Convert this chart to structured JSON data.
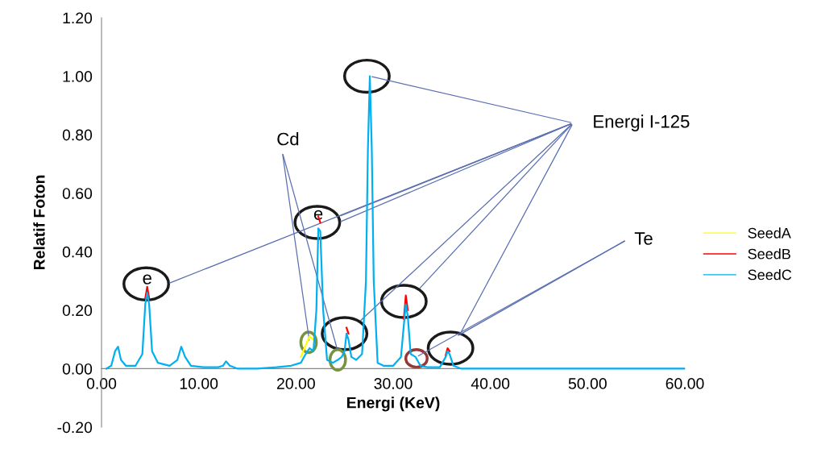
{
  "chart_data": {
    "type": "line",
    "xlabel": "Energi (KeV)",
    "ylabel": "Relatif Foton",
    "xlim": [
      0,
      60
    ],
    "xticks": [
      {
        "value": 0,
        "label": "0.00"
      },
      {
        "value": 10,
        "label": "10.00"
      },
      {
        "value": 20,
        "label": "20.00"
      },
      {
        "value": 30,
        "label": "30.00"
      },
      {
        "value": 40,
        "label": "40.00"
      },
      {
        "value": 50,
        "label": "50.00"
      },
      {
        "value": 60,
        "label": "60.00"
      }
    ],
    "ylim": [
      -0.2,
      1.2
    ],
    "yticks": [
      {
        "value": -0.2,
        "label": "-0.20"
      },
      {
        "value": 0,
        "label": "0.00"
      },
      {
        "value": 0.2,
        "label": "0.20"
      },
      {
        "value": 0.4,
        "label": "0.40"
      },
      {
        "value": 0.6,
        "label": "0.60"
      },
      {
        "value": 0.8,
        "label": "0.80"
      },
      {
        "value": 1.0,
        "label": "1.00"
      },
      {
        "value": 1.2,
        "label": "1.20"
      }
    ],
    "x": [
      0.5,
      1.0,
      1.4,
      1.7,
      2.0,
      2.5,
      3.5,
      4.2,
      4.5,
      4.7,
      4.9,
      5.2,
      5.8,
      7.0,
      7.8,
      8.2,
      8.6,
      9.2,
      10.5,
      12.0,
      12.5,
      12.8,
      13.2,
      14.0,
      16.0,
      18.0,
      19.5,
      20.5,
      21.0,
      21.4,
      21.8,
      22.1,
      22.3,
      22.5,
      22.8,
      23.2,
      23.8,
      24.3,
      24.7,
      25.0,
      25.2,
      25.4,
      25.7,
      26.2,
      26.8,
      27.2,
      27.4,
      27.6,
      27.8,
      28.0,
      28.4,
      29.0,
      30.0,
      30.8,
      31.1,
      31.3,
      31.5,
      31.8,
      32.3,
      32.8,
      33.5,
      34.8,
      35.4,
      35.6,
      35.8,
      36.2,
      37.0,
      40.0,
      45.0,
      50.0,
      55.0,
      60.0
    ],
    "series": [
      {
        "name": "SeedA",
        "color": "#ffff00",
        "values": [
          null,
          null,
          null,
          null,
          null,
          null,
          null,
          null,
          null,
          null,
          null,
          null,
          null,
          null,
          null,
          null,
          null,
          null,
          null,
          null,
          null,
          null,
          null,
          null,
          null,
          null,
          null,
          0.04,
          0.08,
          0.11,
          0.1,
          null,
          null,
          null,
          null,
          null,
          null,
          null,
          null,
          null,
          null,
          null,
          null,
          null,
          null,
          null,
          null,
          null,
          null,
          null,
          null,
          null,
          null,
          null,
          null,
          null,
          null,
          null,
          null,
          null,
          null,
          null,
          null,
          null,
          null,
          null,
          null,
          null,
          null,
          null,
          null,
          null
        ]
      },
      {
        "name": "SeedB",
        "color": "#ff0000",
        "values": [
          null,
          null,
          null,
          null,
          null,
          null,
          null,
          null,
          0.24,
          0.28,
          0.24,
          null,
          null,
          null,
          null,
          null,
          null,
          null,
          null,
          null,
          null,
          null,
          null,
          null,
          null,
          null,
          null,
          null,
          null,
          null,
          null,
          null,
          0.52,
          0.5,
          null,
          null,
          null,
          null,
          null,
          null,
          0.14,
          0.12,
          null,
          null,
          null,
          null,
          null,
          null,
          null,
          null,
          null,
          null,
          null,
          null,
          0.17,
          0.25,
          0.2,
          null,
          null,
          null,
          null,
          null,
          0.045,
          0.07,
          0.06,
          null,
          null,
          null,
          null,
          null,
          null,
          null
        ]
      },
      {
        "name": "SeedC",
        "color": "#00b0f0",
        "values": [
          0,
          0.01,
          0.06,
          0.075,
          0.03,
          0.01,
          0.01,
          0.05,
          0.22,
          0.26,
          0.22,
          0.06,
          0.02,
          0.01,
          0.03,
          0.075,
          0.04,
          0.01,
          0.005,
          0.005,
          0.01,
          0.025,
          0.01,
          0,
          0,
          0.005,
          0.01,
          0.02,
          0.05,
          0.07,
          0.06,
          0.2,
          0.48,
          0.47,
          0.2,
          0.03,
          0.02,
          0.03,
          0.04,
          0.06,
          0.12,
          0.1,
          0.04,
          0.03,
          0.05,
          0.3,
          0.75,
          1.0,
          0.75,
          0.3,
          0.02,
          0.01,
          0.01,
          0.04,
          0.15,
          0.22,
          0.18,
          0.05,
          0.04,
          0.01,
          0.005,
          0.005,
          0.04,
          0.06,
          0.05,
          0.01,
          0,
          0,
          0,
          0,
          0,
          0
        ]
      }
    ],
    "annotations": [
      {
        "text": "e",
        "x": 4.7,
        "y": 0.26
      },
      {
        "text": "e",
        "x": 22.3,
        "y": 0.48
      },
      {
        "text": "Cd",
        "x": 21.4,
        "y": 0.09
      },
      {
        "text": "Energi I-125",
        "x": 27.6,
        "y": 1.0
      },
      {
        "text": "Te",
        "x": 32.4,
        "y": 0.04
      }
    ],
    "legend": "right",
    "grid": false,
    "marker": "none",
    "line_style": "solid"
  }
}
